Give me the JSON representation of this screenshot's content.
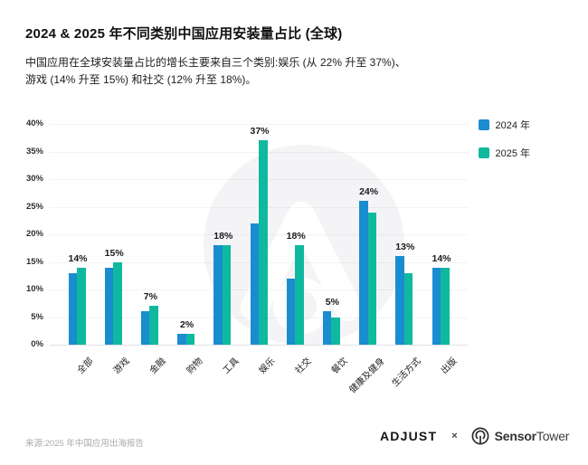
{
  "header": {
    "title": "2024 & 2025 年不同类别中国应用安装量占比 (全球)",
    "subtitle_line1": "中国应用在全球安装量占比的增长主要来自三个类别:娱乐 (从 22% 升至 37%)、",
    "subtitle_line2": "游戏 (14% 升至 15%) 和社交 (12% 升至 18%)。"
  },
  "chart_data": {
    "type": "bar",
    "title": "2024 & 2025 年不同类别中国应用安装量占比 (全球)",
    "categories": [
      "全部",
      "游戏",
      "金融",
      "购物",
      "工具",
      "娱乐",
      "社交",
      "餐饮",
      "健康及健身",
      "生活方式",
      "出版"
    ],
    "series": [
      {
        "name": "2024 年",
        "color": "#1a8cd0",
        "values": [
          13,
          14,
          6,
          2,
          18,
          22,
          12,
          6,
          26,
          16,
          14
        ]
      },
      {
        "name": "2025 年",
        "color": "#0fb9a0",
        "values": [
          14,
          15,
          7,
          2,
          18,
          37,
          18,
          5,
          24,
          13,
          14
        ]
      }
    ],
    "bar_labels": [
      "14%",
      "15%",
      "7%",
      "2%",
      "18%",
      "37%",
      "18%",
      "5%",
      "24%",
      "13%",
      "14%"
    ],
    "bar_label_series": "2025 年",
    "xlabel": "",
    "ylabel": "",
    "ylim": [
      0,
      40
    ],
    "y_tick_step": 5,
    "y_tick_suffix": "%",
    "grid": true,
    "legend_position": "top-right"
  },
  "footer": {
    "source": "来源:2025 年中国应用出海报告",
    "adjust_logo": "ADJUST",
    "separator": "×",
    "sensortower_bold": "Sensor",
    "sensortower_regular": "Tower"
  }
}
